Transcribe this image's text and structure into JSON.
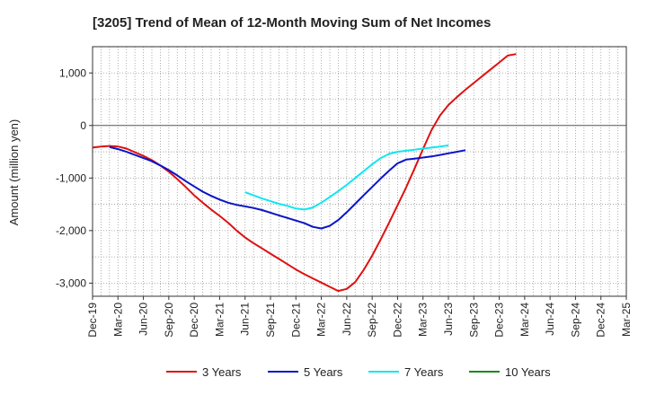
{
  "chart_data": {
    "type": "line",
    "title": "[3205]  Trend of Mean of 12-Month Moving Sum of Net Incomes",
    "xlabel": "",
    "ylabel": "Amount (million yen)",
    "ylim": [
      -3250,
      1500
    ],
    "yticks": [
      1000,
      0,
      -1000,
      -2000,
      -3000
    ],
    "ytick_labels": [
      "1,000",
      "0",
      "-1,000",
      "-2,000",
      "-3,000"
    ],
    "xlim": [
      0,
      63
    ],
    "xticks": [
      0,
      3,
      6,
      9,
      12,
      15,
      18,
      21,
      24,
      27,
      30,
      33,
      36,
      39,
      42,
      45,
      48,
      51,
      54,
      57,
      60,
      63
    ],
    "xtick_labels": [
      "Dec-19",
      "Mar-20",
      "Jun-20",
      "Sep-20",
      "Dec-20",
      "Mar-21",
      "Jun-21",
      "Sep-21",
      "Dec-21",
      "Mar-22",
      "Jun-22",
      "Sep-22",
      "Dec-22",
      "Mar-23",
      "Jun-23",
      "Sep-23",
      "Dec-23",
      "Mar-24",
      "Jun-24",
      "Sep-24",
      "Dec-24",
      "Mar-25"
    ],
    "grid": true,
    "legend_position": "bottom",
    "series": [
      {
        "name": "3 Years",
        "color": "#dd1111",
        "points": [
          [
            0,
            -420
          ],
          [
            1,
            -400
          ],
          [
            2,
            -390
          ],
          [
            3,
            -400
          ],
          [
            4,
            -440
          ],
          [
            5,
            -510
          ],
          [
            6,
            -580
          ],
          [
            7,
            -660
          ],
          [
            8,
            -760
          ],
          [
            9,
            -880
          ],
          [
            10,
            -1020
          ],
          [
            11,
            -1170
          ],
          [
            12,
            -1330
          ],
          [
            13,
            -1470
          ],
          [
            14,
            -1600
          ],
          [
            15,
            -1720
          ],
          [
            16,
            -1850
          ],
          [
            17,
            -2000
          ],
          [
            18,
            -2130
          ],
          [
            19,
            -2240
          ],
          [
            20,
            -2340
          ],
          [
            21,
            -2440
          ],
          [
            22,
            -2540
          ],
          [
            23,
            -2640
          ],
          [
            24,
            -2740
          ],
          [
            25,
            -2830
          ],
          [
            26,
            -2910
          ],
          [
            27,
            -2990
          ],
          [
            28,
            -3070
          ],
          [
            29,
            -3150
          ],
          [
            30,
            -3110
          ],
          [
            31,
            -2980
          ],
          [
            32,
            -2750
          ],
          [
            33,
            -2480
          ],
          [
            34,
            -2170
          ],
          [
            35,
            -1850
          ],
          [
            36,
            -1520
          ],
          [
            37,
            -1180
          ],
          [
            38,
            -820
          ],
          [
            39,
            -450
          ],
          [
            40,
            -90
          ],
          [
            41,
            190
          ],
          [
            42,
            390
          ],
          [
            43,
            540
          ],
          [
            44,
            680
          ],
          [
            45,
            810
          ],
          [
            46,
            940
          ],
          [
            47,
            1070
          ],
          [
            48,
            1200
          ],
          [
            49,
            1330
          ],
          [
            50,
            1360
          ]
        ]
      },
      {
        "name": "5 Years",
        "color": "#0a14c8",
        "points": [
          [
            2,
            -410
          ],
          [
            3,
            -450
          ],
          [
            4,
            -500
          ],
          [
            5,
            -560
          ],
          [
            6,
            -620
          ],
          [
            7,
            -680
          ],
          [
            8,
            -760
          ],
          [
            9,
            -850
          ],
          [
            10,
            -950
          ],
          [
            11,
            -1060
          ],
          [
            12,
            -1160
          ],
          [
            13,
            -1260
          ],
          [
            14,
            -1340
          ],
          [
            15,
            -1410
          ],
          [
            16,
            -1470
          ],
          [
            17,
            -1510
          ],
          [
            18,
            -1540
          ],
          [
            19,
            -1570
          ],
          [
            20,
            -1610
          ],
          [
            21,
            -1660
          ],
          [
            22,
            -1710
          ],
          [
            23,
            -1760
          ],
          [
            24,
            -1810
          ],
          [
            25,
            -1860
          ],
          [
            26,
            -1930
          ],
          [
            27,
            -1960
          ],
          [
            28,
            -1910
          ],
          [
            29,
            -1800
          ],
          [
            30,
            -1650
          ],
          [
            31,
            -1490
          ],
          [
            32,
            -1330
          ],
          [
            33,
            -1170
          ],
          [
            34,
            -1010
          ],
          [
            35,
            -860
          ],
          [
            36,
            -720
          ],
          [
            37,
            -650
          ],
          [
            38,
            -630
          ],
          [
            39,
            -610
          ],
          [
            40,
            -590
          ],
          [
            41,
            -560
          ],
          [
            42,
            -530
          ],
          [
            43,
            -500
          ],
          [
            44,
            -470
          ]
        ]
      },
      {
        "name": "7 Years",
        "color": "#11e6f0",
        "points": [
          [
            18,
            -1270
          ],
          [
            19,
            -1330
          ],
          [
            20,
            -1390
          ],
          [
            21,
            -1440
          ],
          [
            22,
            -1490
          ],
          [
            23,
            -1530
          ],
          [
            24,
            -1580
          ],
          [
            25,
            -1600
          ],
          [
            26,
            -1560
          ],
          [
            27,
            -1470
          ],
          [
            28,
            -1360
          ],
          [
            29,
            -1250
          ],
          [
            30,
            -1130
          ],
          [
            31,
            -1000
          ],
          [
            32,
            -870
          ],
          [
            33,
            -740
          ],
          [
            34,
            -620
          ],
          [
            35,
            -540
          ],
          [
            36,
            -500
          ],
          [
            37,
            -480
          ],
          [
            38,
            -460
          ],
          [
            39,
            -440
          ],
          [
            40,
            -420
          ],
          [
            41,
            -400
          ],
          [
            42,
            -380
          ]
        ]
      },
      {
        "name": "10 Years",
        "color": "#1a8a1a",
        "points": []
      }
    ]
  }
}
